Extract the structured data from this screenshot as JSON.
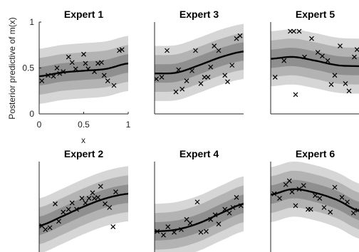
{
  "chart_data": [
    {
      "type": "line",
      "title": "Expert 1",
      "xlabel": "x",
      "ylabel": "Posterior predictive of m(x)",
      "xlim": [
        0,
        1
      ],
      "ylim": [
        0,
        1
      ],
      "xticks": [
        "0",
        "0.5",
        "1"
      ],
      "yticks": [
        "0",
        "0.5",
        "1"
      ],
      "mean": {
        "x": [
          0,
          0.25,
          0.5,
          0.75,
          1
        ],
        "y": [
          0.41,
          0.45,
          0.47,
          0.49,
          0.55
        ]
      },
      "band_halfwidths": [
        0.1,
        0.2,
        0.3
      ],
      "points": [
        [
          0.03,
          0.36
        ],
        [
          0.1,
          0.42
        ],
        [
          0.16,
          0.41
        ],
        [
          0.2,
          0.5
        ],
        [
          0.23,
          0.44
        ],
        [
          0.27,
          0.46
        ],
        [
          0.33,
          0.62
        ],
        [
          0.37,
          0.56
        ],
        [
          0.41,
          0.49
        ],
        [
          0.5,
          0.65
        ],
        [
          0.52,
          0.55
        ],
        [
          0.55,
          0.49
        ],
        [
          0.62,
          0.46
        ],
        [
          0.66,
          0.55
        ],
        [
          0.7,
          0.56
        ],
        [
          0.73,
          0.42
        ],
        [
          0.77,
          0.36
        ],
        [
          0.84,
          0.31
        ],
        [
          0.9,
          0.69
        ],
        [
          0.93,
          0.7
        ]
      ]
    },
    {
      "type": "line",
      "title": "Expert 3",
      "xlim": [
        0,
        1
      ],
      "ylim": [
        0,
        1
      ],
      "mean": {
        "x": [
          0,
          0.25,
          0.5,
          0.75,
          1
        ],
        "y": [
          0.44,
          0.45,
          0.53,
          0.62,
          0.68
        ]
      },
      "band_halfwidths": [
        0.1,
        0.2,
        0.3
      ],
      "points": [
        [
          0.02,
          0.38
        ],
        [
          0.08,
          0.4
        ],
        [
          0.14,
          0.69
        ],
        [
          0.24,
          0.24
        ],
        [
          0.27,
          0.48
        ],
        [
          0.31,
          0.27
        ],
        [
          0.36,
          0.36
        ],
        [
          0.42,
          0.47
        ],
        [
          0.46,
          0.69
        ],
        [
          0.52,
          0.33
        ],
        [
          0.56,
          0.4
        ],
        [
          0.6,
          0.4
        ],
        [
          0.63,
          0.51
        ],
        [
          0.67,
          0.74
        ],
        [
          0.72,
          0.69
        ],
        [
          0.79,
          0.42
        ],
        [
          0.82,
          0.35
        ],
        [
          0.87,
          0.53
        ],
        [
          0.92,
          0.82
        ],
        [
          0.96,
          0.85
        ]
      ]
    },
    {
      "type": "line",
      "title": "Expert 5",
      "xlim": [
        0,
        1
      ],
      "ylim": [
        0,
        1
      ],
      "mean": {
        "x": [
          0,
          0.25,
          0.5,
          0.75,
          1
        ],
        "y": [
          0.6,
          0.62,
          0.58,
          0.53,
          0.52
        ]
      },
      "band_halfwidths": [
        0.1,
        0.2,
        0.3
      ],
      "points": [
        [
          0.05,
          0.4
        ],
        [
          0.15,
          0.58
        ],
        [
          0.22,
          0.9
        ],
        [
          0.26,
          0.9
        ],
        [
          0.28,
          0.21
        ],
        [
          0.32,
          0.9
        ],
        [
          0.38,
          0.62
        ],
        [
          0.46,
          0.82
        ],
        [
          0.53,
          0.67
        ],
        [
          0.58,
          0.63
        ],
        [
          0.64,
          0.58
        ],
        [
          0.68,
          0.32
        ],
        [
          0.72,
          0.42
        ],
        [
          0.78,
          0.74
        ],
        [
          0.84,
          0.33
        ],
        [
          0.88,
          0.25
        ],
        [
          0.94,
          0.62
        ],
        [
          0.97,
          0.7
        ]
      ]
    },
    {
      "type": "line",
      "title": "Expert 2",
      "xlim": [
        0,
        1
      ],
      "ylim": [
        0,
        1
      ],
      "mean": {
        "x": [
          0,
          0.25,
          0.5,
          0.75,
          1
        ],
        "y": [
          0.3,
          0.4,
          0.51,
          0.6,
          0.65
        ]
      },
      "band_halfwidths": [
        0.1,
        0.2,
        0.3
      ],
      "points": [
        [
          0.03,
          0.3
        ],
        [
          0.07,
          0.26
        ],
        [
          0.12,
          0.28
        ],
        [
          0.18,
          0.54
        ],
        [
          0.22,
          0.35
        ],
        [
          0.27,
          0.45
        ],
        [
          0.33,
          0.48
        ],
        [
          0.37,
          0.55
        ],
        [
          0.42,
          0.48
        ],
        [
          0.48,
          0.6
        ],
        [
          0.52,
          0.55
        ],
        [
          0.56,
          0.6
        ],
        [
          0.6,
          0.66
        ],
        [
          0.62,
          0.6
        ],
        [
          0.66,
          0.61
        ],
        [
          0.69,
          0.73
        ],
        [
          0.74,
          0.54
        ],
        [
          0.79,
          0.5
        ],
        [
          0.83,
          0.29
        ],
        [
          0.86,
          0.67
        ]
      ]
    },
    {
      "type": "line",
      "title": "Expert 4",
      "xlim": [
        0,
        1
      ],
      "ylim": [
        0,
        1
      ],
      "mean": {
        "x": [
          0,
          0.25,
          0.5,
          0.75,
          1
        ],
        "y": [
          0.24,
          0.26,
          0.33,
          0.44,
          0.54
        ]
      },
      "band_halfwidths": [
        0.1,
        0.2,
        0.3
      ],
      "points": [
        [
          0.03,
          0.24
        ],
        [
          0.1,
          0.2
        ],
        [
          0.15,
          0.29
        ],
        [
          0.22,
          0.23
        ],
        [
          0.3,
          0.26
        ],
        [
          0.36,
          0.37
        ],
        [
          0.4,
          0.33
        ],
        [
          0.48,
          0.56
        ],
        [
          0.52,
          0.23
        ],
        [
          0.58,
          0.24
        ],
        [
          0.63,
          0.37
        ],
        [
          0.68,
          0.42
        ],
        [
          0.72,
          0.32
        ],
        [
          0.79,
          0.48
        ],
        [
          0.84,
          0.44
        ],
        [
          0.88,
          0.5
        ],
        [
          0.92,
          0.61
        ],
        [
          0.97,
          0.52
        ]
      ]
    },
    {
      "type": "line",
      "title": "Expert 6",
      "xlim": [
        0,
        1
      ],
      "ylim": [
        0,
        1
      ],
      "mean": {
        "x": [
          0,
          0.25,
          0.5,
          0.75,
          1
        ],
        "y": [
          0.64,
          0.7,
          0.66,
          0.58,
          0.46
        ]
      },
      "band_halfwidths": [
        0.1,
        0.2,
        0.3
      ],
      "points": [
        [
          0.04,
          0.65
        ],
        [
          0.1,
          0.6
        ],
        [
          0.17,
          0.75
        ],
        [
          0.21,
          0.79
        ],
        [
          0.24,
          0.67
        ],
        [
          0.28,
          0.52
        ],
        [
          0.32,
          0.7
        ],
        [
          0.37,
          0.74
        ],
        [
          0.42,
          0.48
        ],
        [
          0.45,
          0.48
        ],
        [
          0.5,
          0.63
        ],
        [
          0.55,
          0.6
        ],
        [
          0.6,
          0.5
        ],
        [
          0.67,
          0.45
        ],
        [
          0.72,
          0.72
        ],
        [
          0.8,
          0.61
        ],
        [
          0.86,
          0.56
        ],
        [
          0.93,
          0.44
        ],
        [
          0.98,
          0.47
        ]
      ]
    }
  ],
  "colors": {
    "band_outer": "#d6d6d6",
    "band_mid": "#b3b3b3",
    "band_inner": "#8f8f8f",
    "mean_line": "#000000",
    "points": "#000000",
    "axis": "#262626"
  }
}
